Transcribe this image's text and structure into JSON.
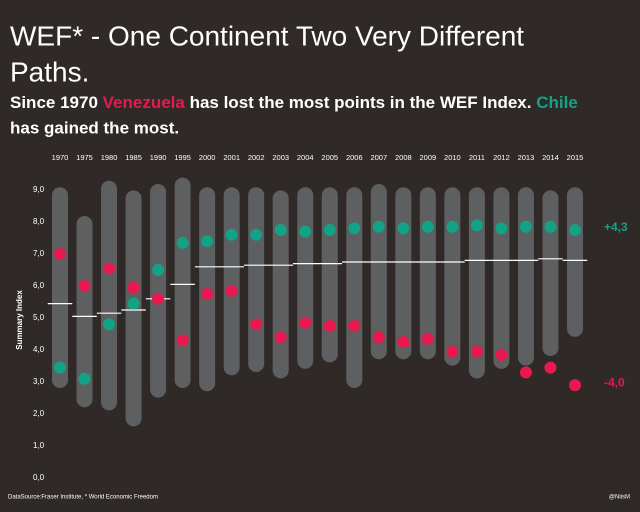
{
  "chart_data": {
    "type": "strip",
    "title_lines": [
      "WEF* - One Continent Two Very Different",
      "Paths."
    ],
    "subtitle_parts": [
      "Since 1970 ",
      " has lost the most points in the WEF Index. ",
      "has gained the most."
    ],
    "y_label": "Summary Index",
    "categories": [
      "1970",
      "1975",
      "1980",
      "1985",
      "1990",
      "1995",
      "2000",
      "2001",
      "2002",
      "2003",
      "2004",
      "2005",
      "2006",
      "2007",
      "2008",
      "2009",
      "2010",
      "2011",
      "2012",
      "2013",
      "2014",
      "2015"
    ],
    "ylim": [
      0,
      9
    ],
    "yticks": [
      {
        "value": 0,
        "label": "0,0"
      },
      {
        "value": 1,
        "label": "1,0"
      },
      {
        "value": 2,
        "label": "2,0"
      },
      {
        "value": 3,
        "label": "3,0"
      },
      {
        "value": 4,
        "label": "4,0"
      },
      {
        "value": 5,
        "label": "5,0"
      },
      {
        "value": 6,
        "label": "6,0"
      },
      {
        "value": 7,
        "label": "7,0"
      },
      {
        "value": 8,
        "label": "8,0"
      },
      {
        "value": 9,
        "label": "9,0"
      }
    ],
    "series": [
      {
        "name": "Venezuela",
        "color": "#e8194f",
        "values": [
          7.0,
          6.0,
          6.55,
          5.95,
          5.6,
          4.3,
          5.75,
          5.85,
          4.8,
          4.4,
          4.85,
          4.75,
          4.75,
          4.4,
          4.25,
          4.35,
          3.95,
          3.95,
          3.85,
          3.3,
          3.45,
          2.9
        ],
        "end_label": "-4,0"
      },
      {
        "name": "Chile",
        "color": "#12a286",
        "values": [
          3.45,
          3.1,
          4.8,
          5.45,
          6.5,
          7.35,
          7.4,
          7.6,
          7.6,
          7.75,
          7.7,
          7.75,
          7.8,
          7.85,
          7.8,
          7.85,
          7.85,
          7.9,
          7.8,
          7.85,
          7.85,
          7.75
        ],
        "end_label": "+4,3"
      }
    ],
    "median": {
      "color": "#ffffff",
      "values": [
        5.45,
        5.05,
        5.15,
        5.25,
        5.6,
        6.05,
        6.6,
        6.6,
        6.65,
        6.65,
        6.7,
        6.7,
        6.75,
        6.75,
        6.75,
        6.75,
        6.75,
        6.8,
        6.8,
        6.8,
        6.85,
        6.8
      ]
    },
    "spread": {
      "color": "#7d8486",
      "low": [
        3.0,
        2.4,
        2.3,
        1.8,
        2.7,
        3.0,
        2.9,
        3.4,
        3.5,
        3.3,
        3.6,
        3.8,
        3.0,
        3.9,
        3.9,
        3.9,
        3.7,
        3.3,
        3.6,
        3.7,
        4.0,
        4.6
      ],
      "high": [
        8.9,
        8.0,
        9.1,
        8.8,
        9.0,
        9.2,
        8.9,
        8.9,
        8.9,
        8.8,
        8.9,
        8.9,
        8.9,
        9.0,
        8.9,
        8.9,
        8.9,
        8.9,
        8.9,
        8.9,
        8.8,
        8.9
      ]
    },
    "footer_left": "DataSource:Fraser Institute, * World Economic Freedom",
    "footer_right": "@NiisM"
  }
}
